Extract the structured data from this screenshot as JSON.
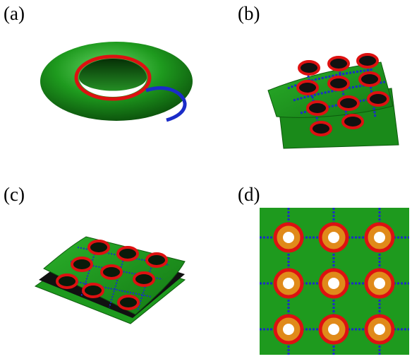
{
  "panels": {
    "a": {
      "label": "(a)"
    },
    "b": {
      "label": "(b)"
    },
    "c": {
      "label": "(c)"
    },
    "d": {
      "label": "(d)"
    }
  },
  "colors": {
    "surface_green": "#1e9a1e",
    "surface_dark_green": "#0c5a0c",
    "ring_red": "#dd1111",
    "cycle_blue": "#1a2cc8",
    "hole_white": "#ffffff",
    "hole_orange": "#e08a1a",
    "between_layers": "#111111"
  },
  "icons": {
    "a": "torus-with-cycles",
    "b": "two-layer-surface-with-holes",
    "c": "stacked-layers-with-ring-holes",
    "d": "top-view-grid-of-holes"
  }
}
